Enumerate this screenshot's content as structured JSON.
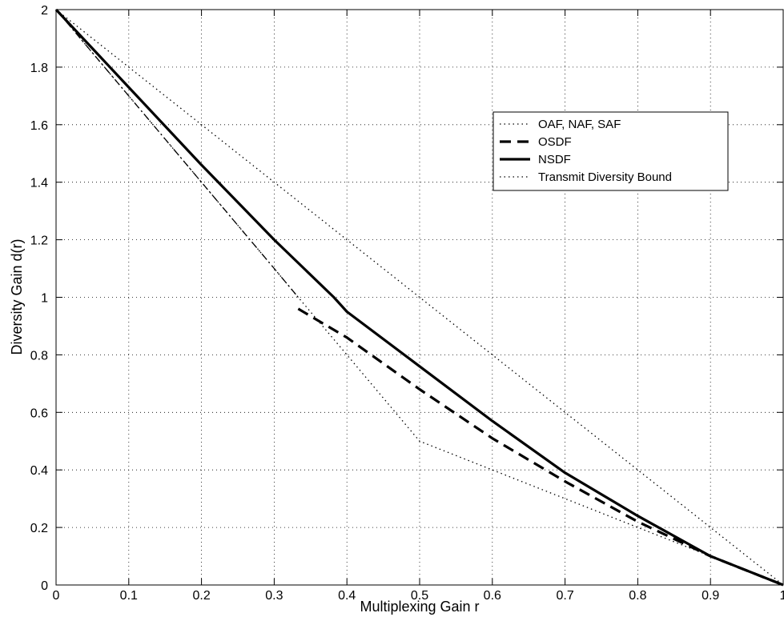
{
  "chart_data": {
    "type": "line",
    "title": "",
    "xlabel": "Multiplexing Gain r",
    "ylabel": "Diversity Gain d(r)",
    "xlim": [
      0,
      1
    ],
    "ylim": [
      0,
      2
    ],
    "x_ticks": [
      0,
      0.1,
      0.2,
      0.3,
      0.4,
      0.5,
      0.6,
      0.7,
      0.8,
      0.9,
      1
    ],
    "x_tick_labels": [
      "0",
      "0.1",
      "0.2",
      "0.3",
      "0.4",
      "0.5",
      "0.6",
      "0.7",
      "0.8",
      "0.9",
      "1"
    ],
    "y_ticks": [
      0,
      0.2,
      0.4,
      0.6,
      0.8,
      1,
      1.2,
      1.4,
      1.6,
      1.8,
      2
    ],
    "y_tick_labels": [
      "0",
      "0.2",
      "0.4",
      "0.6",
      "0.8",
      "1",
      "1.2",
      "1.4",
      "1.6",
      "1.8",
      "2"
    ],
    "grid": true,
    "legend_position": "top-right",
    "series": [
      {
        "name": "OAF, NAF, SAF",
        "style": "dotted",
        "x": [
          0,
          0.1,
          0.2,
          0.3,
          0.333,
          0.4,
          0.5,
          0.6,
          0.7,
          0.8,
          0.9,
          1
        ],
        "y": [
          2,
          1.7,
          1.4,
          1.1,
          1.0,
          0.8,
          0.5,
          0.4,
          0.3,
          0.2,
          0.1,
          0
        ]
      },
      {
        "name": "OSDF",
        "style": "dashed",
        "x": [
          0.333,
          0.4,
          0.5,
          0.6,
          0.7,
          0.8,
          0.9,
          1
        ],
        "y": [
          0.96,
          0.86,
          0.68,
          0.51,
          0.36,
          0.22,
          0.1,
          0
        ]
      },
      {
        "name": "OSDF",
        "style": "dashdot",
        "x": [
          0,
          0.1,
          0.2,
          0.3,
          0.333
        ],
        "y": [
          2,
          1.7,
          1.4,
          1.1,
          1.0
        ]
      },
      {
        "name": "NSDF",
        "style": "solid",
        "x": [
          0,
          0.1,
          0.2,
          0.3,
          0.382,
          0.4,
          0.5,
          0.6,
          0.7,
          0.8,
          0.9,
          1
        ],
        "y": [
          2,
          1.73,
          1.46,
          1.2,
          1.0,
          0.95,
          0.76,
          0.57,
          0.39,
          0.24,
          0.1,
          0
        ]
      },
      {
        "name": "Transmit Diversity Bound",
        "style": "dotted",
        "x": [
          0,
          1
        ],
        "y": [
          2,
          0
        ]
      }
    ],
    "legend_entries": [
      {
        "label": "OAF, NAF, SAF",
        "style": "dotted"
      },
      {
        "label": "OSDF",
        "style": "dashed"
      },
      {
        "label": "NSDF",
        "style": "solid"
      },
      {
        "label": "Transmit Diversity Bound",
        "style": "dotted"
      }
    ]
  }
}
